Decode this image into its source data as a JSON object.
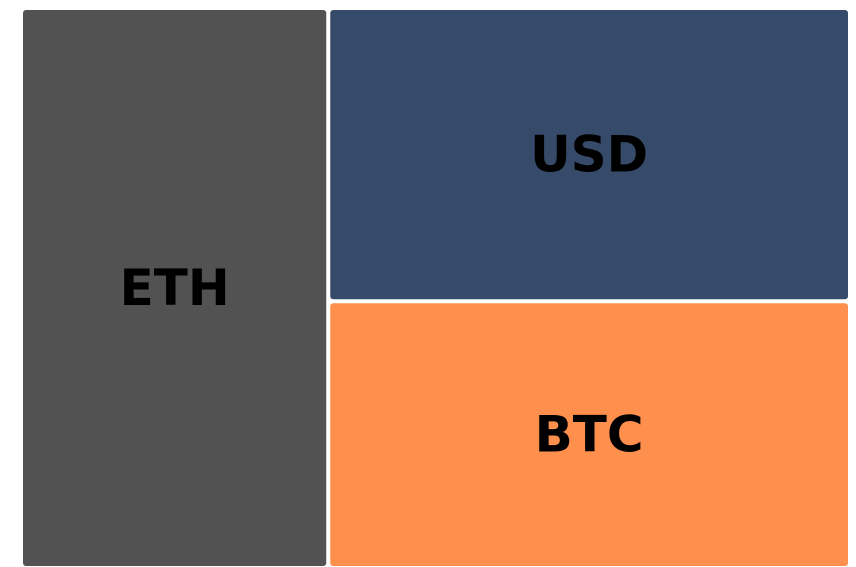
{
  "chart_data": {
    "type": "treemap",
    "categories": [
      "ETH",
      "USD",
      "BTC"
    ],
    "values": [
      37,
      33,
      30
    ],
    "colors": [
      "#525252",
      "#364b69",
      "#ff8f4c"
    ]
  }
}
